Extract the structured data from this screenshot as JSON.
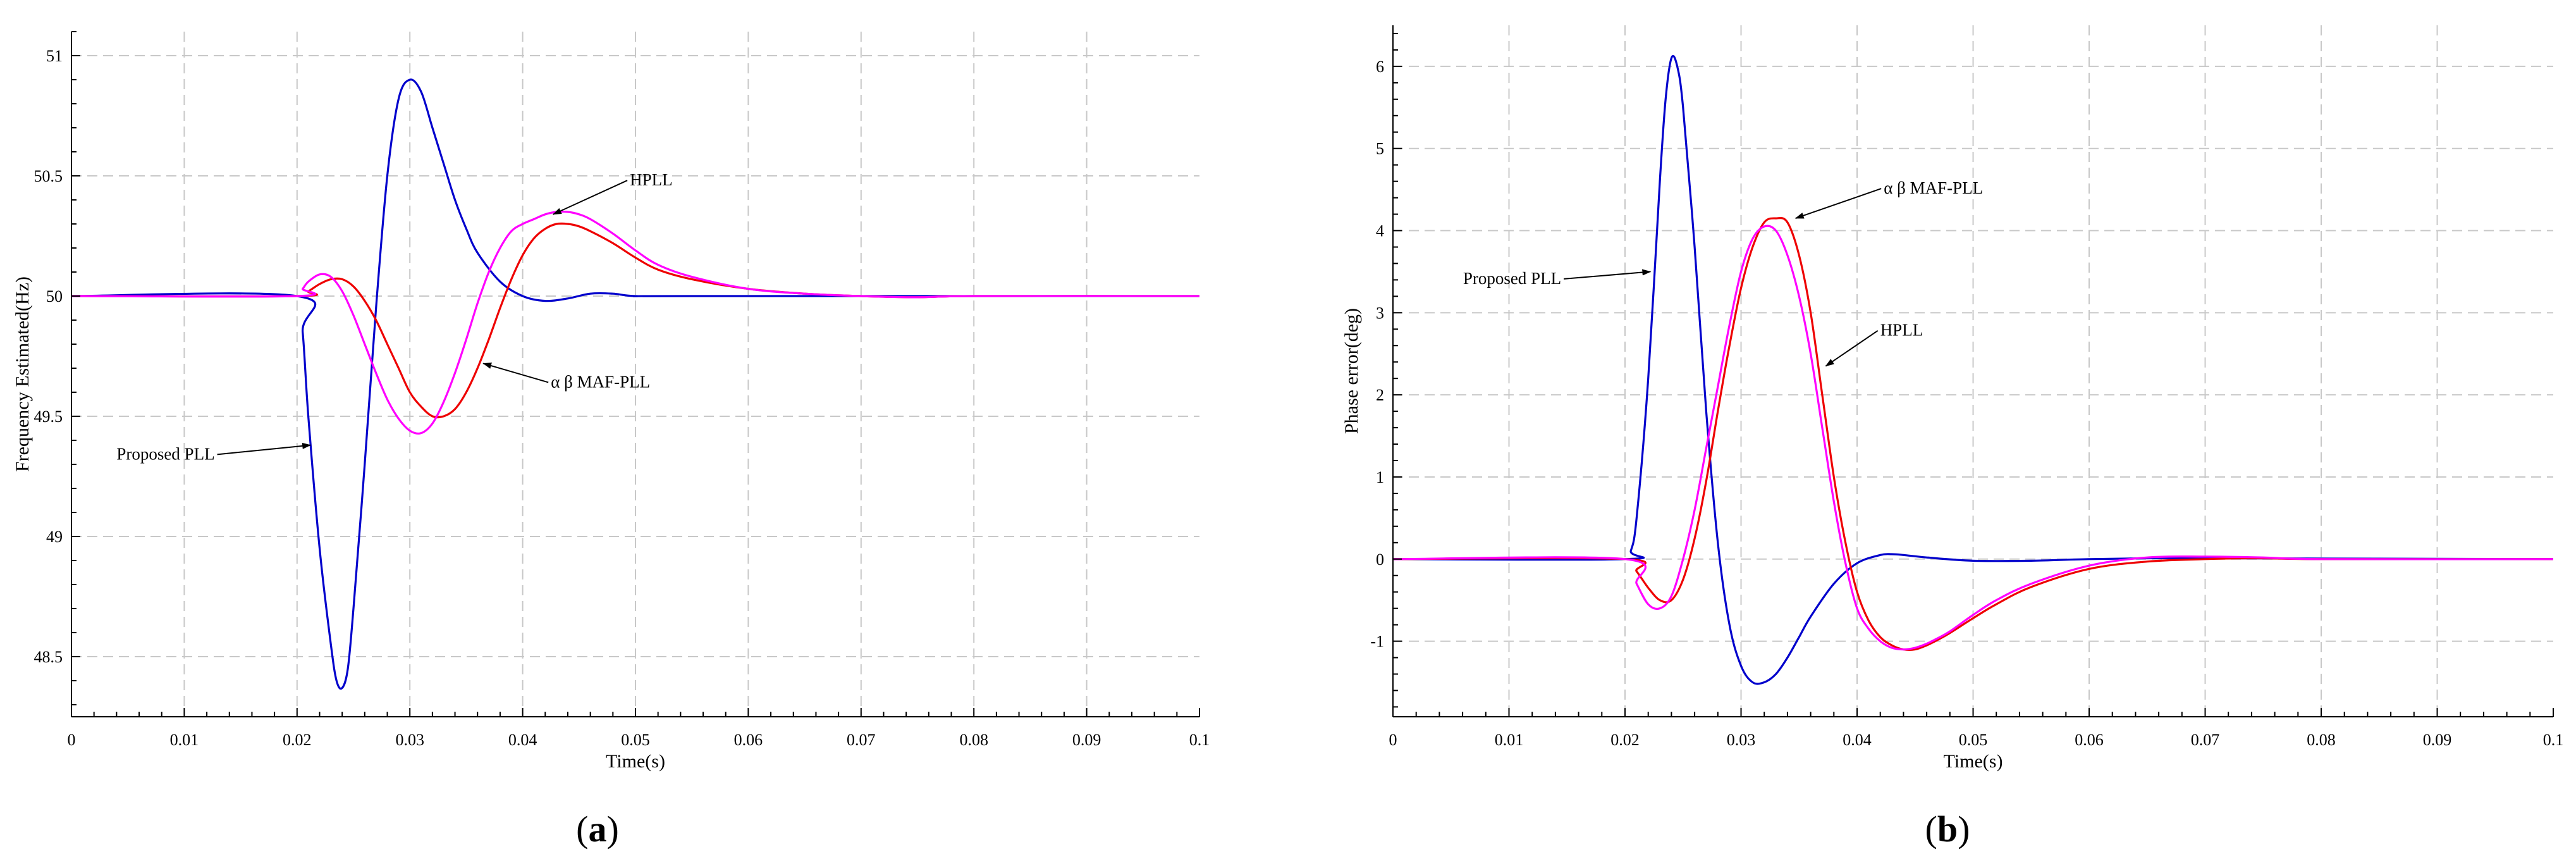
{
  "chart_data": [
    {
      "type": "line",
      "panel_label": {
        "open": "(",
        "letter": "a",
        "close": ")"
      },
      "xlabel": "Time(s)",
      "ylabel": "Frequency Estimated(Hz)",
      "xlim": [
        0,
        0.1
      ],
      "ylim": [
        48.25,
        51.1
      ],
      "xticks": [
        "0",
        "0.01",
        "0.02",
        "0.03",
        "0.04",
        "0.05",
        "0.06",
        "0.07",
        "0.08",
        "0.09",
        "0.1"
      ],
      "yticks": [
        "48.5",
        "49",
        "49.5",
        "50",
        "50.5",
        "51"
      ],
      "grid": true,
      "series": [
        {
          "color": "#0000cc",
          "x": [
            0,
            0.02,
            0.0205,
            0.021,
            0.022,
            0.023,
            0.0235,
            0.024,
            0.0245,
            0.025,
            0.026,
            0.027,
            0.028,
            0.029,
            0.03,
            0.031,
            0.032,
            0.033,
            0.034,
            0.035,
            0.036,
            0.038,
            0.04,
            0.042,
            0.044,
            0.046,
            0.048,
            0.05,
            0.055,
            0.1
          ],
          "y": [
            50,
            50,
            49.85,
            49.5,
            48.95,
            48.55,
            48.4,
            48.37,
            48.45,
            48.7,
            49.3,
            49.95,
            50.5,
            50.82,
            50.9,
            50.85,
            50.7,
            50.55,
            50.4,
            50.28,
            50.18,
            50.06,
            50,
            49.98,
            49.99,
            50.01,
            50.01,
            50,
            50,
            50
          ]
        },
        {
          "color": "#ee0000",
          "x": [
            0,
            0.02,
            0.021,
            0.022,
            0.023,
            0.024,
            0.025,
            0.026,
            0.027,
            0.028,
            0.029,
            0.03,
            0.031,
            0.032,
            0.033,
            0.034,
            0.035,
            0.036,
            0.037,
            0.038,
            0.039,
            0.04,
            0.041,
            0.042,
            0.043,
            0.044,
            0.045,
            0.046,
            0.048,
            0.05,
            0.052,
            0.055,
            0.06,
            0.065,
            0.07,
            0.075,
            0.08,
            0.1
          ],
          "y": [
            50,
            50,
            50.02,
            50.05,
            50.07,
            50.07,
            50.04,
            49.98,
            49.9,
            49.8,
            49.7,
            49.6,
            49.54,
            49.5,
            49.5,
            49.53,
            49.6,
            49.7,
            49.82,
            49.95,
            50.07,
            50.17,
            50.24,
            50.28,
            50.3,
            50.3,
            50.29,
            50.27,
            50.22,
            50.16,
            50.11,
            50.07,
            50.03,
            50.01,
            50,
            49.995,
            50,
            50
          ]
        },
        {
          "color": "#ff00ff",
          "x": [
            0,
            0.02,
            0.0205,
            0.021,
            0.022,
            0.023,
            0.024,
            0.025,
            0.026,
            0.027,
            0.028,
            0.029,
            0.03,
            0.031,
            0.032,
            0.033,
            0.034,
            0.035,
            0.036,
            0.037,
            0.038,
            0.039,
            0.04,
            0.041,
            0.042,
            0.043,
            0.044,
            0.045,
            0.046,
            0.048,
            0.05,
            0.052,
            0.055,
            0.06,
            0.065,
            0.07,
            0.075,
            0.08,
            0.1
          ],
          "y": [
            50,
            50,
            50.03,
            50.06,
            50.09,
            50.08,
            50.02,
            49.92,
            49.8,
            49.68,
            49.57,
            49.49,
            49.44,
            49.43,
            49.47,
            49.56,
            49.68,
            49.82,
            49.97,
            50.1,
            50.2,
            50.27,
            50.3,
            50.32,
            50.34,
            50.35,
            50.35,
            50.34,
            50.32,
            50.26,
            50.19,
            50.13,
            50.08,
            50.03,
            50.01,
            50,
            49.995,
            50,
            50
          ]
        }
      ],
      "annotations": [
        {
          "text": "HPLL",
          "x": 0.0495,
          "y": 50.46,
          "ax": 0.0427,
          "ay": 50.34,
          "anchor": "start"
        },
        {
          "text": "α β MAF-PLL",
          "x": 0.0425,
          "y": 49.62,
          "ax": 0.0365,
          "ay": 49.72,
          "anchor": "start"
        },
        {
          "text": "Proposed PLL",
          "x": 0.0127,
          "y": 49.32,
          "ax": 0.0212,
          "ay": 49.38,
          "anchor": "end"
        }
      ]
    },
    {
      "type": "line",
      "panel_label": {
        "open": "(",
        "letter": "b",
        "close": ")"
      },
      "xlabel": "Time(s)",
      "ylabel": "Phase error(deg)",
      "xlim": [
        0,
        0.1
      ],
      "ylim": [
        -1.92,
        6.5
      ],
      "xticks": [
        "0",
        "0.01",
        "0.02",
        "0.03",
        "0.04",
        "0.05",
        "0.06",
        "0.07",
        "0.08",
        "0.09",
        "0.1"
      ],
      "yticks": [
        "-1",
        "0",
        "1",
        "2",
        "3",
        "4",
        "5",
        "6"
      ],
      "grid": true,
      "series": [
        {
          "color": "#0000cc",
          "x": [
            0,
            0.02,
            0.0205,
            0.021,
            0.022,
            0.023,
            0.0235,
            0.024,
            0.0245,
            0.025,
            0.026,
            0.027,
            0.028,
            0.029,
            0.03,
            0.031,
            0.032,
            0.033,
            0.034,
            0.035,
            0.036,
            0.038,
            0.04,
            0.042,
            0.043,
            0.044,
            0.046,
            0.05,
            0.055,
            0.06,
            0.065,
            0.07,
            0.1
          ],
          "y": [
            0,
            0,
            0.1,
            0.5,
            2.2,
            4.6,
            5.6,
            6.1,
            6.0,
            5.5,
            3.8,
            1.8,
            0.2,
            -0.8,
            -1.3,
            -1.5,
            -1.5,
            -1.4,
            -1.2,
            -0.95,
            -0.7,
            -0.3,
            -0.05,
            0.05,
            0.06,
            0.05,
            0.02,
            -0.02,
            -0.02,
            0,
            0.01,
            0.01,
            0
          ]
        },
        {
          "color": "#ee0000",
          "x": [
            0,
            0.02,
            0.021,
            0.022,
            0.023,
            0.024,
            0.025,
            0.026,
            0.027,
            0.028,
            0.029,
            0.03,
            0.031,
            0.032,
            0.033,
            0.034,
            0.035,
            0.036,
            0.037,
            0.038,
            0.039,
            0.04,
            0.041,
            0.042,
            0.043,
            0.044,
            0.045,
            0.046,
            0.047,
            0.048,
            0.05,
            0.052,
            0.055,
            0.06,
            0.065,
            0.07,
            0.075,
            0.08,
            0.1
          ],
          "y": [
            0,
            0,
            -0.15,
            -0.35,
            -0.5,
            -0.5,
            -0.25,
            0.25,
            0.95,
            1.8,
            2.6,
            3.3,
            3.8,
            4.1,
            4.15,
            4.1,
            3.7,
            3.0,
            2.0,
            1.0,
            0.2,
            -0.4,
            -0.75,
            -0.95,
            -1.05,
            -1.1,
            -1.1,
            -1.05,
            -0.98,
            -0.9,
            -0.72,
            -0.55,
            -0.34,
            -0.12,
            -0.03,
            0,
            0.01,
            0,
            0
          ]
        },
        {
          "color": "#ff00ff",
          "x": [
            0,
            0.02,
            0.021,
            0.022,
            0.023,
            0.024,
            0.025,
            0.026,
            0.027,
            0.028,
            0.029,
            0.03,
            0.031,
            0.032,
            0.033,
            0.034,
            0.035,
            0.036,
            0.037,
            0.038,
            0.039,
            0.04,
            0.041,
            0.042,
            0.043,
            0.044,
            0.045,
            0.046,
            0.047,
            0.048,
            0.05,
            0.052,
            0.055,
            0.06,
            0.065,
            0.07,
            0.075,
            0.08,
            0.1
          ],
          "y": [
            0,
            0,
            -0.3,
            -0.55,
            -0.6,
            -0.45,
            0,
            0.6,
            1.35,
            2.1,
            2.85,
            3.5,
            3.9,
            4.05,
            4.0,
            3.7,
            3.2,
            2.5,
            1.6,
            0.7,
            -0.05,
            -0.6,
            -0.85,
            -1.0,
            -1.08,
            -1.1,
            -1.08,
            -1.03,
            -0.96,
            -0.88,
            -0.68,
            -0.5,
            -0.3,
            -0.08,
            0.02,
            0.03,
            0.02,
            0,
            0
          ]
        }
      ],
      "annotations": [
        {
          "text": "α β MAF-PLL",
          "x": 0.0423,
          "y": 4.45,
          "ax": 0.0347,
          "ay": 4.15,
          "anchor": "start"
        },
        {
          "text": "Proposed PLL",
          "x": 0.0145,
          "y": 3.35,
          "ax": 0.0222,
          "ay": 3.5,
          "anchor": "end"
        },
        {
          "text": "HPLL",
          "x": 0.042,
          "y": 2.72,
          "ax": 0.0373,
          "ay": 2.35,
          "anchor": "start"
        }
      ]
    }
  ]
}
